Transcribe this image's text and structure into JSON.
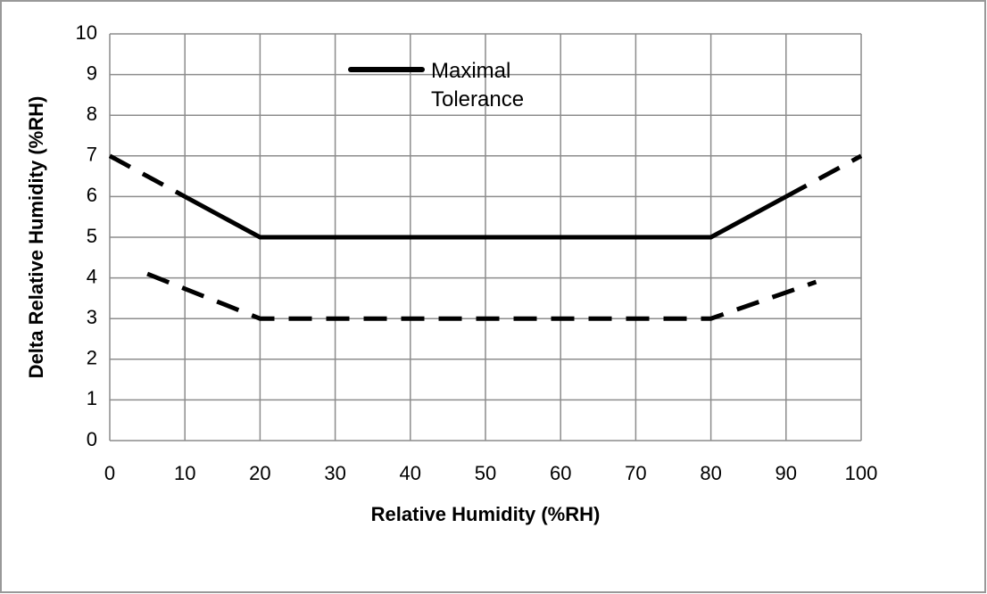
{
  "chart_data": {
    "type": "line",
    "x_label": "Relative Humidity (%RH)",
    "y_label": "Delta Relative Humidity (%RH)",
    "xlim": [
      0,
      100
    ],
    "xticks": [
      0,
      10,
      20,
      30,
      40,
      50,
      60,
      70,
      80,
      90,
      100
    ],
    "ylim": [
      0,
      10
    ],
    "yticks": [
      0,
      1,
      2,
      3,
      4,
      5,
      6,
      7,
      8,
      9,
      10
    ],
    "grid": true,
    "series": [
      {
        "name": "Maximal Tolerance",
        "color": "#000000",
        "dashed": false,
        "x": [
          10,
          20,
          80,
          90
        ],
        "values": [
          6,
          5,
          5,
          6
        ]
      },
      {
        "color": "#000000",
        "dashed": true,
        "x": [
          0,
          10
        ],
        "values": [
          7,
          6
        ]
      },
      {
        "color": "#000000",
        "dashed": true,
        "x": [
          90,
          100
        ],
        "values": [
          6,
          7
        ]
      },
      {
        "color": "#000000",
        "dashed": true,
        "x": [
          5,
          20,
          80,
          94
        ],
        "values": [
          4.1,
          3,
          3,
          3.9
        ]
      }
    ]
  }
}
